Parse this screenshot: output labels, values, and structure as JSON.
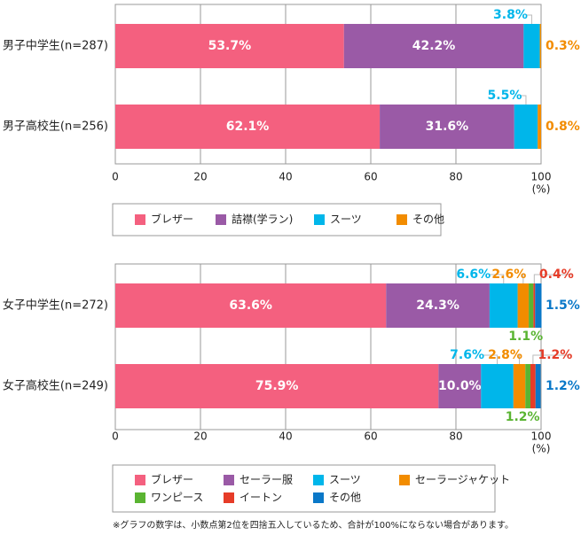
{
  "chart_data": [
    {
      "type": "stacked-bar-horizontal",
      "categories": [
        "男子中学生(n=287)",
        "男子高校生(n=256)"
      ],
      "series": [
        {
          "name": "ブレザー",
          "color": "#f4607f",
          "values": [
            53.7,
            62.1
          ],
          "value_labels": [
            "53.7%",
            "62.1%"
          ]
        },
        {
          "name": "詰襟(学ラン)",
          "color": "#9a5aa6",
          "values": [
            42.2,
            31.6
          ],
          "value_labels": [
            "42.2%",
            "31.6%"
          ]
        },
        {
          "name": "スーツ",
          "color": "#00b6ea",
          "values": [
            3.8,
            5.5
          ],
          "value_labels": [
            "3.8%",
            "5.5%"
          ]
        },
        {
          "name": "その他",
          "color": "#f28c00",
          "values": [
            0.3,
            0.8
          ],
          "value_labels": [
            "0.3%",
            "0.8%"
          ]
        }
      ],
      "xlim": [
        0,
        100
      ],
      "xticks": [
        0,
        20,
        40,
        60,
        80,
        100
      ],
      "x_unit": "(%)",
      "grid": true
    },
    {
      "type": "stacked-bar-horizontal",
      "categories": [
        "女子中学生(n=272)",
        "女子高校生(n=249)"
      ],
      "series": [
        {
          "name": "ブレザー",
          "color": "#f4607f",
          "values": [
            63.6,
            75.9
          ],
          "value_labels": [
            "63.6%",
            "75.9%"
          ]
        },
        {
          "name": "セーラー服",
          "color": "#9a5aa6",
          "values": [
            24.3,
            10.0
          ],
          "value_labels": [
            "24.3%",
            "10.0%"
          ]
        },
        {
          "name": "スーツ",
          "color": "#00b6ea",
          "values": [
            6.6,
            7.6
          ],
          "value_labels": [
            "6.6%",
            "7.6%"
          ]
        },
        {
          "name": "セーラージャケット",
          "color": "#f28c00",
          "values": [
            2.6,
            2.8
          ],
          "value_labels": [
            "2.6%",
            "2.8%"
          ]
        },
        {
          "name": "ワンピース",
          "color": "#5ab432",
          "values": [
            1.1,
            1.2
          ],
          "value_labels": [
            "1.1%",
            "1.2%"
          ]
        },
        {
          "name": "イートン",
          "color": "#e63c28",
          "values": [
            0.4,
            1.2
          ],
          "value_labels": [
            "0.4%",
            "1.2%"
          ]
        },
        {
          "name": "その他",
          "color": "#0a78c8",
          "values": [
            1.5,
            1.2
          ],
          "value_labels": [
            "1.5%",
            "1.2%"
          ]
        }
      ],
      "xlim": [
        0,
        100
      ],
      "xticks": [
        0,
        20,
        40,
        60,
        80,
        100
      ],
      "x_unit": "(%)",
      "grid": true
    }
  ],
  "footnote": "※グラフの数字は、小数点第2位を四捨五入しているため、合計が100%にならない場合があります。"
}
